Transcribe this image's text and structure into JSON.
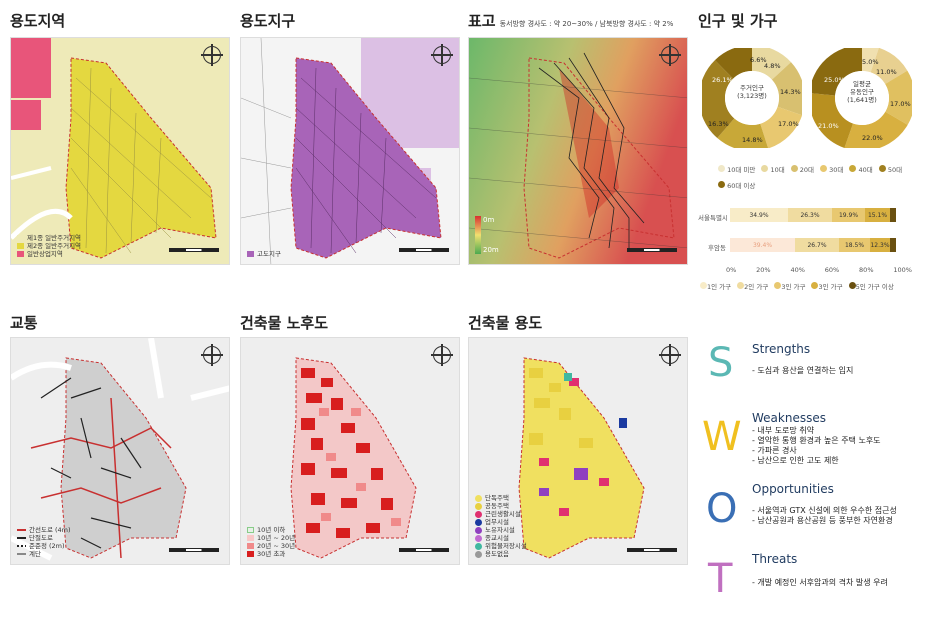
{
  "panels": {
    "zoning": {
      "title": "용도지역",
      "legend": [
        "제1종 일반주거지역",
        "제2종 일반주거지역",
        "일반상업지역"
      ]
    },
    "district": {
      "title": "용도지구",
      "legend": [
        "고도지구"
      ]
    },
    "elevation": {
      "title": "표고",
      "subtitle": "동서방향 경사도 : 약 20~30% / 남북방향 경사도 : 약 2%",
      "legend_top": "0m",
      "legend_bottom": "20m"
    },
    "traffic": {
      "title": "교통",
      "legend": [
        "간선도로 (4m)",
        "단절도로",
        "준준정 (2m)",
        "계단"
      ]
    },
    "age": {
      "title": "건축물 노후도",
      "legend": [
        "10년 이하",
        "10년 ~ 20년",
        "20년 ~ 30년",
        "30년 초과"
      ]
    },
    "use": {
      "title": "건축물 용도",
      "legend": [
        "단독주택",
        "공동주택",
        "근린생활시설",
        "업무시설",
        "노유자시설",
        "종교시설",
        "위험물저장시설",
        "용도없음"
      ]
    }
  },
  "scalebar": {
    "labels": [
      "0",
      "50",
      "100(m)"
    ]
  },
  "population": {
    "title": "인구 및 가구",
    "pie1": {
      "center": [
        "주거인구",
        "(3,123명)"
      ],
      "labels": [
        "26.1%",
        "16.3%",
        "14.8%",
        "17.0%",
        "14.3%",
        "4.8%",
        "6.6%"
      ]
    },
    "pie2": {
      "center": [
        "일평균",
        "유동인구",
        "(1,641명)"
      ],
      "labels": [
        "25.0%",
        "21.0%",
        "22.0%",
        "17.0%",
        "11.0%",
        "5.0%"
      ]
    },
    "age_legend": [
      "10대 미만",
      "10대",
      "20대",
      "30대",
      "40대",
      "50대",
      "60대 이상"
    ],
    "bars": [
      {
        "label": "서울특별시",
        "values": [
          "34.9%",
          "26.3%",
          "19.9%",
          "15.1%",
          ""
        ]
      },
      {
        "label": "후암동",
        "values": [
          "39.4%",
          "26.7%",
          "18.5%",
          "12.3%",
          ""
        ]
      }
    ],
    "axis": [
      "0%",
      "20%",
      "40%",
      "60%",
      "80%",
      "100%"
    ],
    "household_legend": [
      "1인 가구",
      "2인 가구",
      "3인 가구",
      "3인 가구",
      "5인 가구 이상"
    ]
  },
  "swot": {
    "S": {
      "letter": "S",
      "head": "Strengths",
      "items": [
        "- 도심과 용산을 연결하는 입지"
      ],
      "color": "#5bb8b4"
    },
    "W": {
      "letter": "W",
      "head": "Weaknesses",
      "items": [
        "- 내부 도로망 취약",
        "- 열악한 통행 환경과 높은 주택 노후도",
        "- 가파른 경사",
        "- 남산으로 인한 고도 제한"
      ],
      "color": "#f0c020"
    },
    "O": {
      "letter": "O",
      "head": "Opportunities",
      "items": [
        "- 서울역과 GTX 신설에 의한 우수한 접근성",
        "- 남산공원과 용산공원 등 풍부한 자연환경"
      ],
      "color": "#3a6fb5"
    },
    "T": {
      "letter": "T",
      "head": "Threats",
      "items": [
        "- 개발 예정인 서후암과의 격차 발생 우려"
      ],
      "color": "#c070c0"
    }
  }
}
